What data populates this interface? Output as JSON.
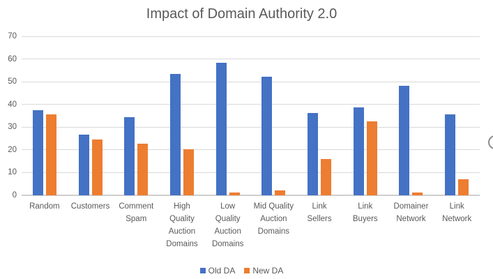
{
  "chart_data": {
    "type": "bar",
    "title": "Impact of Domain Authority 2.0",
    "categories": [
      "Random",
      "Customers",
      "Comment Spam",
      "High Quality Auction Domains",
      "Low Quality Auction Domains",
      "Mid Quality Auction Domains",
      "Link Sellers",
      "Link Buyers",
      "Domainer Network",
      "Link Network"
    ],
    "series": [
      {
        "name": "Old DA",
        "color": "#4472C4",
        "values": [
          37.5,
          26.7,
          34.5,
          53.5,
          58.3,
          52.1,
          36.1,
          38.7,
          48.1,
          35.6
        ]
      },
      {
        "name": "New DA",
        "color": "#ED7D31",
        "values": [
          35.5,
          24.5,
          22.6,
          20.4,
          1.2,
          2.2,
          16.0,
          32.4,
          1.2,
          7.2
        ]
      }
    ],
    "xlabel": "",
    "ylabel": "",
    "ylim": [
      0,
      70
    ],
    "yticks": [
      0,
      10,
      20,
      30,
      40,
      50,
      60,
      70
    ],
    "grid": true,
    "grid_color": "#D9D9D9",
    "axis_line_color": "#D0CECE",
    "text_color": "#595959",
    "legend_position": "bottom"
  }
}
